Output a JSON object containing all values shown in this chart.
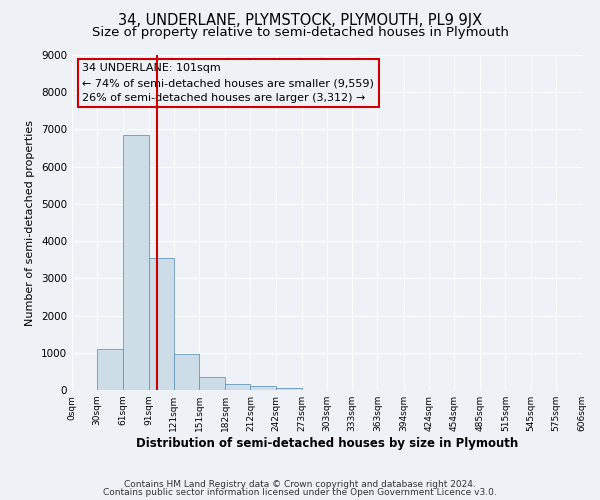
{
  "title": "34, UNDERLANE, PLYMSTOCK, PLYMOUTH, PL9 9JX",
  "subtitle": "Size of property relative to semi-detached houses in Plymouth",
  "xlabel": "Distribution of semi-detached houses by size in Plymouth",
  "ylabel": "Number of semi-detached properties",
  "bar_edges": [
    0,
    30,
    61,
    91,
    121,
    151,
    182,
    212,
    242,
    273,
    303,
    333,
    363,
    394,
    424,
    454,
    485,
    515,
    545,
    575,
    606
  ],
  "bar_heights": [
    0,
    1100,
    6850,
    3550,
    975,
    340,
    155,
    100,
    55,
    0,
    0,
    0,
    0,
    0,
    0,
    0,
    0,
    0,
    0,
    0
  ],
  "bar_color": "#ccdde8",
  "bar_edgecolor": "#6699bb",
  "property_size": 101,
  "vline_color": "#cc0000",
  "annotation_box_edgecolor": "#cc0000",
  "annotation_title": "34 UNDERLANE: 101sqm",
  "annotation_line1": "← 74% of semi-detached houses are smaller (9,559)",
  "annotation_line2": "26% of semi-detached houses are larger (3,312) →",
  "ylim": [
    0,
    9000
  ],
  "yticks": [
    0,
    1000,
    2000,
    3000,
    4000,
    5000,
    6000,
    7000,
    8000,
    9000
  ],
  "xtick_labels": [
    "0sqm",
    "30sqm",
    "61sqm",
    "91sqm",
    "121sqm",
    "151sqm",
    "182sqm",
    "212sqm",
    "242sqm",
    "273sqm",
    "303sqm",
    "333sqm",
    "363sqm",
    "394sqm",
    "424sqm",
    "454sqm",
    "485sqm",
    "515sqm",
    "545sqm",
    "575sqm",
    "606sqm"
  ],
  "footer_line1": "Contains HM Land Registry data © Crown copyright and database right 2024.",
  "footer_line2": "Contains public sector information licensed under the Open Government Licence v3.0.",
  "background_color": "#eef2f6",
  "plot_background": "#eef2f6",
  "grid_color": "#ffffff",
  "title_fontsize": 10.5,
  "subtitle_fontsize": 9.5,
  "annotation_fontsize": 8,
  "footer_fontsize": 6.5
}
